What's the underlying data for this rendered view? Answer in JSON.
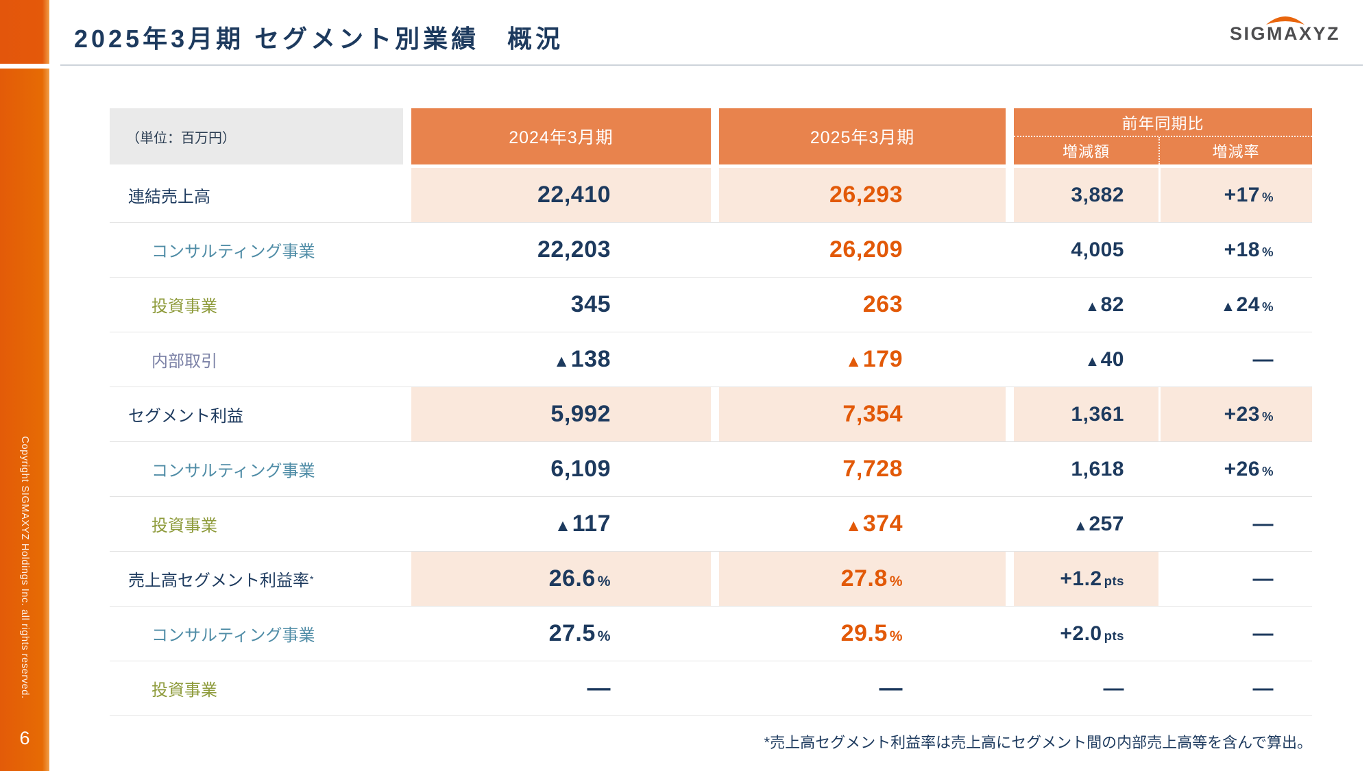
{
  "sidebar": {
    "copyright": "Copyright SIGMAXYZ Holdings Inc. all rights reserved.",
    "page_number": "6"
  },
  "header": {
    "title": "2025年3月期 セグメント別業績　概況",
    "logo_text": "SIGMAXYZ"
  },
  "table": {
    "unit_label": "（単位：百万円）",
    "col_2024": "2024年3月期",
    "col_2025": "2025年3月期",
    "col_yoy_group": "前年同期比",
    "col_diff": "増減額",
    "col_rate": "増減率",
    "rows": [
      {
        "label": "連結売上高",
        "sup": "",
        "indent": false,
        "color": "navy",
        "peach": true,
        "rate_peach": true,
        "c2024": {
          "t": "22,410"
        },
        "c2025": {
          "t": "26,293"
        },
        "diff": {
          "t": "3,882"
        },
        "rate": {
          "t": "+17",
          "suffix": "%"
        }
      },
      {
        "label": "コンサルティング事業",
        "sup": "",
        "indent": true,
        "color": "teal",
        "peach": false,
        "rate_peach": false,
        "c2024": {
          "t": "22,203"
        },
        "c2025": {
          "t": "26,209"
        },
        "diff": {
          "t": "4,005"
        },
        "rate": {
          "t": "+18",
          "suffix": "%"
        }
      },
      {
        "label": "投資事業",
        "sup": "",
        "indent": true,
        "color": "olive",
        "peach": false,
        "rate_peach": false,
        "c2024": {
          "t": "345"
        },
        "c2025": {
          "t": "263"
        },
        "diff": {
          "t": "▲82"
        },
        "rate": {
          "t": "▲24",
          "suffix": "%"
        }
      },
      {
        "label": "内部取引",
        "sup": "",
        "indent": true,
        "color": "slate",
        "peach": false,
        "rate_peach": false,
        "c2024": {
          "t": "▲138"
        },
        "c2025": {
          "t": "▲179"
        },
        "diff": {
          "t": "▲40"
        },
        "rate": {
          "t": "—"
        }
      },
      {
        "label": "セグメント利益",
        "sup": "",
        "indent": false,
        "color": "navy",
        "peach": true,
        "rate_peach": true,
        "c2024": {
          "t": "5,992"
        },
        "c2025": {
          "t": "7,354"
        },
        "diff": {
          "t": "1,361"
        },
        "rate": {
          "t": "+23",
          "suffix": "%"
        }
      },
      {
        "label": "コンサルティング事業",
        "sup": "",
        "indent": true,
        "color": "teal",
        "peach": false,
        "rate_peach": false,
        "c2024": {
          "t": "6,109"
        },
        "c2025": {
          "t": "7,728"
        },
        "diff": {
          "t": "1,618"
        },
        "rate": {
          "t": "+26",
          "suffix": "%"
        }
      },
      {
        "label": "投資事業",
        "sup": "",
        "indent": true,
        "color": "olive",
        "peach": false,
        "rate_peach": false,
        "c2024": {
          "t": "▲117"
        },
        "c2025": {
          "t": "▲374"
        },
        "diff": {
          "t": "▲257"
        },
        "rate": {
          "t": "—"
        }
      },
      {
        "label": "売上高セグメント利益率",
        "sup": "*",
        "indent": false,
        "color": "navy",
        "peach": true,
        "rate_peach": false,
        "c2024": {
          "t": "26.6",
          "suffix": "%"
        },
        "c2025": {
          "t": "27.8",
          "suffix": "%"
        },
        "diff": {
          "t": "+1.2",
          "suffix": "pts"
        },
        "rate": {
          "t": "—"
        }
      },
      {
        "label": "コンサルティング事業",
        "sup": "",
        "indent": true,
        "color": "teal",
        "peach": false,
        "rate_peach": false,
        "c2024": {
          "t": "27.5",
          "suffix": "%"
        },
        "c2025": {
          "t": "29.5",
          "suffix": "%"
        },
        "diff": {
          "t": "+2.0",
          "suffix": "pts"
        },
        "rate": {
          "t": "—"
        }
      },
      {
        "label": "投資事業",
        "sup": "",
        "indent": true,
        "color": "olive",
        "peach": false,
        "rate_peach": false,
        "c2024": {
          "t": "—"
        },
        "c2025": {
          "t": "—"
        },
        "diff": {
          "t": "—"
        },
        "rate": {
          "t": "—"
        }
      }
    ]
  },
  "footnote": "*売上高セグメント利益率は売上高にセグメント間の内部売上高等を含んで算出。",
  "colors": {
    "sidebar_orange": "#E45C08",
    "sidebar_orange_edge": "#F0A04A",
    "header_orange": "#E8834D",
    "peach": "#FAE8DC",
    "navy": "#1D3A5E",
    "value_orange": "#E25908",
    "teal": "#4F8CA6",
    "olive": "#8E9B3B",
    "slate": "#7B81A6",
    "divider": "#E3E3E3",
    "unit_bg": "#EAEAEA"
  }
}
